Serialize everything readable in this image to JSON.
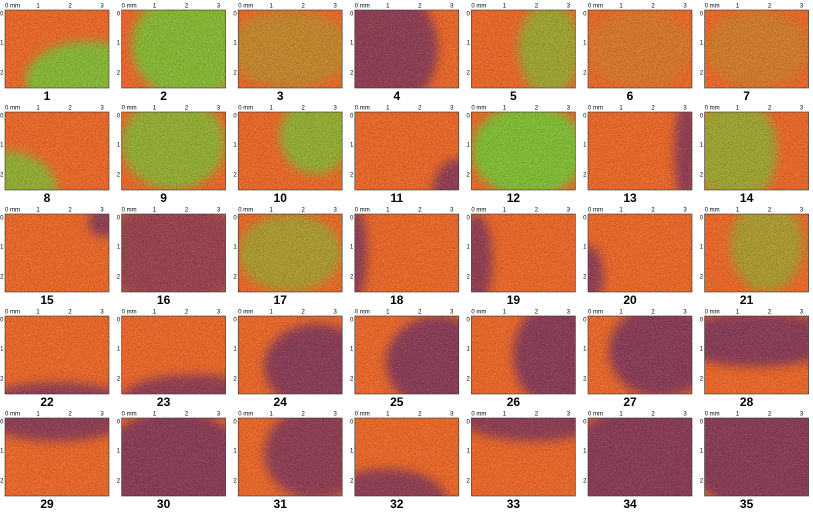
{
  "x_axis_labels": [
    "0 mm",
    "1",
    "2",
    "3"
  ],
  "y_axis_labels": [
    "0",
    "1",
    "2"
  ],
  "panels": [
    "1",
    "2",
    "3",
    "4",
    "5",
    "6",
    "7",
    "8",
    "9",
    "10",
    "11",
    "12",
    "13",
    "14",
    "15",
    "16",
    "17",
    "18",
    "19",
    "20",
    "21",
    "22",
    "23",
    "24",
    "25",
    "26",
    "27",
    "28",
    "29",
    "30",
    "31",
    "32",
    "33",
    "34",
    "35"
  ]
}
